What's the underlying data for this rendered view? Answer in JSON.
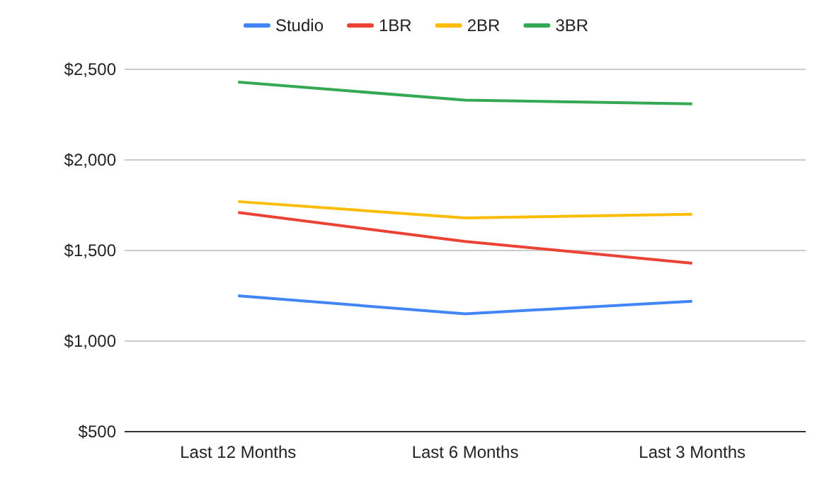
{
  "chart_data": {
    "type": "line",
    "categories": [
      "Last 12 Months",
      "Last 6 Months",
      "Last 3 Months"
    ],
    "series": [
      {
        "name": "Studio",
        "color": "#4285f4",
        "values": [
          1250,
          1150,
          1220
        ]
      },
      {
        "name": "1BR",
        "color": "#ea4335",
        "values": [
          1710,
          1550,
          1430
        ]
      },
      {
        "name": "2BR",
        "color": "#fbbc04",
        "values": [
          1770,
          1680,
          1700
        ]
      },
      {
        "name": "3BR",
        "color": "#34a853",
        "values": [
          2430,
          2330,
          2310
        ]
      }
    ],
    "ylim": [
      500,
      2500
    ],
    "yticks": [
      {
        "value": 500,
        "label": "$500"
      },
      {
        "value": 1000,
        "label": "$1,000"
      },
      {
        "value": 1500,
        "label": "$1,500"
      },
      {
        "value": 2000,
        "label": "$2,000"
      },
      {
        "value": 2500,
        "label": "$2,500"
      }
    ],
    "grid": "y",
    "legend": "top",
    "marker": "none",
    "line_style": "solid"
  }
}
